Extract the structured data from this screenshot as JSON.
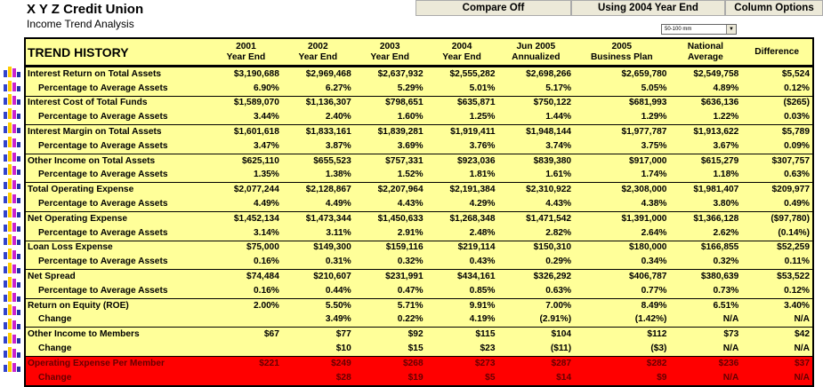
{
  "header": {
    "title": "X Y Z Credit Union",
    "subtitle": "Income Trend Analysis"
  },
  "toolbar": {
    "compare": "Compare Off",
    "year": "Using 2004 Year End",
    "columns": "Column Options",
    "size_select": "50-100 mm"
  },
  "table": {
    "title": "TREND HISTORY",
    "columns": [
      [
        "2001",
        "Year End"
      ],
      [
        "2002",
        "Year End"
      ],
      [
        "2003",
        "Year End"
      ],
      [
        "2004",
        "Year End"
      ],
      [
        "Jun 2005",
        "Annualized"
      ],
      [
        "2005",
        "Business Plan"
      ],
      [
        "National",
        "Average"
      ],
      [
        "",
        "Difference"
      ]
    ],
    "rows": [
      {
        "label": "Interest Return on Total Assets",
        "values": [
          "$3,190,688",
          "$2,969,468",
          "$2,637,932",
          "$2,555,282",
          "$2,698,266",
          "$2,659,780",
          "$2,549,758",
          "$5,524"
        ]
      },
      {
        "label": "Percentage to Average Assets",
        "sub": true,
        "values": [
          "6.90%",
          "6.27%",
          "5.29%",
          "5.01%",
          "5.17%",
          "5.05%",
          "4.89%",
          "0.12%"
        ]
      },
      {
        "label": "Interest Cost of Total Funds",
        "values": [
          "$1,589,070",
          "$1,136,307",
          "$798,651",
          "$635,871",
          "$750,122",
          "$681,993",
          "$636,136",
          "($265)"
        ]
      },
      {
        "label": "Percentage to Average Assets",
        "sub": true,
        "values": [
          "3.44%",
          "2.40%",
          "1.60%",
          "1.25%",
          "1.44%",
          "1.29%",
          "1.22%",
          "0.03%"
        ]
      },
      {
        "label": "Interest Margin on Total Assets",
        "values": [
          "$1,601,618",
          "$1,833,161",
          "$1,839,281",
          "$1,919,411",
          "$1,948,144",
          "$1,977,787",
          "$1,913,622",
          "$5,789"
        ]
      },
      {
        "label": "Percentage to Average Assets",
        "sub": true,
        "values": [
          "3.47%",
          "3.87%",
          "3.69%",
          "3.76%",
          "3.74%",
          "3.75%",
          "3.67%",
          "0.09%"
        ]
      },
      {
        "label": "Other Income on Total Assets",
        "values": [
          "$625,110",
          "$655,523",
          "$757,331",
          "$923,036",
          "$839,380",
          "$917,000",
          "$615,279",
          "$307,757"
        ]
      },
      {
        "label": "Percentage to Average Assets",
        "sub": true,
        "values": [
          "1.35%",
          "1.38%",
          "1.52%",
          "1.81%",
          "1.61%",
          "1.74%",
          "1.18%",
          "0.63%"
        ]
      },
      {
        "label": "Total Operating Expense",
        "values": [
          "$2,077,244",
          "$2,128,867",
          "$2,207,964",
          "$2,191,384",
          "$2,310,922",
          "$2,308,000",
          "$1,981,407",
          "$209,977"
        ]
      },
      {
        "label": "Percentage to Average Assets",
        "sub": true,
        "values": [
          "4.49%",
          "4.49%",
          "4.43%",
          "4.29%",
          "4.43%",
          "4.38%",
          "3.80%",
          "0.49%"
        ]
      },
      {
        "label": "Net Operating Expense",
        "values": [
          "$1,452,134",
          "$1,473,344",
          "$1,450,633",
          "$1,268,348",
          "$1,471,542",
          "$1,391,000",
          "$1,366,128",
          "($97,780)"
        ]
      },
      {
        "label": "Percentage to Average Assets",
        "sub": true,
        "values": [
          "3.14%",
          "3.11%",
          "2.91%",
          "2.48%",
          "2.82%",
          "2.64%",
          "2.62%",
          "(0.14%)"
        ]
      },
      {
        "label": "Loan Loss Expense",
        "values": [
          "$75,000",
          "$149,300",
          "$159,116",
          "$219,114",
          "$150,310",
          "$180,000",
          "$166,855",
          "$52,259"
        ]
      },
      {
        "label": "Percentage to Average Assets",
        "sub": true,
        "values": [
          "0.16%",
          "0.31%",
          "0.32%",
          "0.43%",
          "0.29%",
          "0.34%",
          "0.32%",
          "0.11%"
        ]
      },
      {
        "label": "Net Spread",
        "values": [
          "$74,484",
          "$210,607",
          "$231,991",
          "$434,161",
          "$326,292",
          "$406,787",
          "$380,639",
          "$53,522"
        ]
      },
      {
        "label": "Percentage to Average Assets",
        "sub": true,
        "values": [
          "0.16%",
          "0.44%",
          "0.47%",
          "0.85%",
          "0.63%",
          "0.77%",
          "0.73%",
          "0.12%"
        ]
      },
      {
        "label": "Return on Equity (ROE)",
        "values": [
          "2.00%",
          "5.50%",
          "5.71%",
          "9.91%",
          "7.00%",
          "8.49%",
          "6.51%",
          "3.40%"
        ]
      },
      {
        "label": "Change",
        "sub": true,
        "values": [
          "",
          "3.49%",
          "0.22%",
          "4.19%",
          "(2.91%)",
          "(1.42%)",
          "N/A",
          "N/A"
        ]
      },
      {
        "label": "Other Income to Members",
        "values": [
          "$67",
          "$77",
          "$92",
          "$115",
          "$104",
          "$112",
          "$73",
          "$42"
        ]
      },
      {
        "label": "Change",
        "sub": true,
        "values": [
          "",
          "$10",
          "$15",
          "$23",
          "($11)",
          "($3)",
          "N/A",
          "N/A"
        ]
      },
      {
        "label": "Operating Expense Per Member",
        "red": true,
        "values": [
          "$221",
          "$249",
          "$268",
          "$273",
          "$287",
          "$282",
          "$236",
          "$37"
        ]
      },
      {
        "label": "Change",
        "sub": true,
        "red": true,
        "values": [
          "",
          "$28",
          "$19",
          "$5",
          "$14",
          "$9",
          "N/A",
          "N/A"
        ]
      }
    ]
  },
  "colors": {
    "table_bg": "#ffff99",
    "highlight": "#ff0000"
  }
}
